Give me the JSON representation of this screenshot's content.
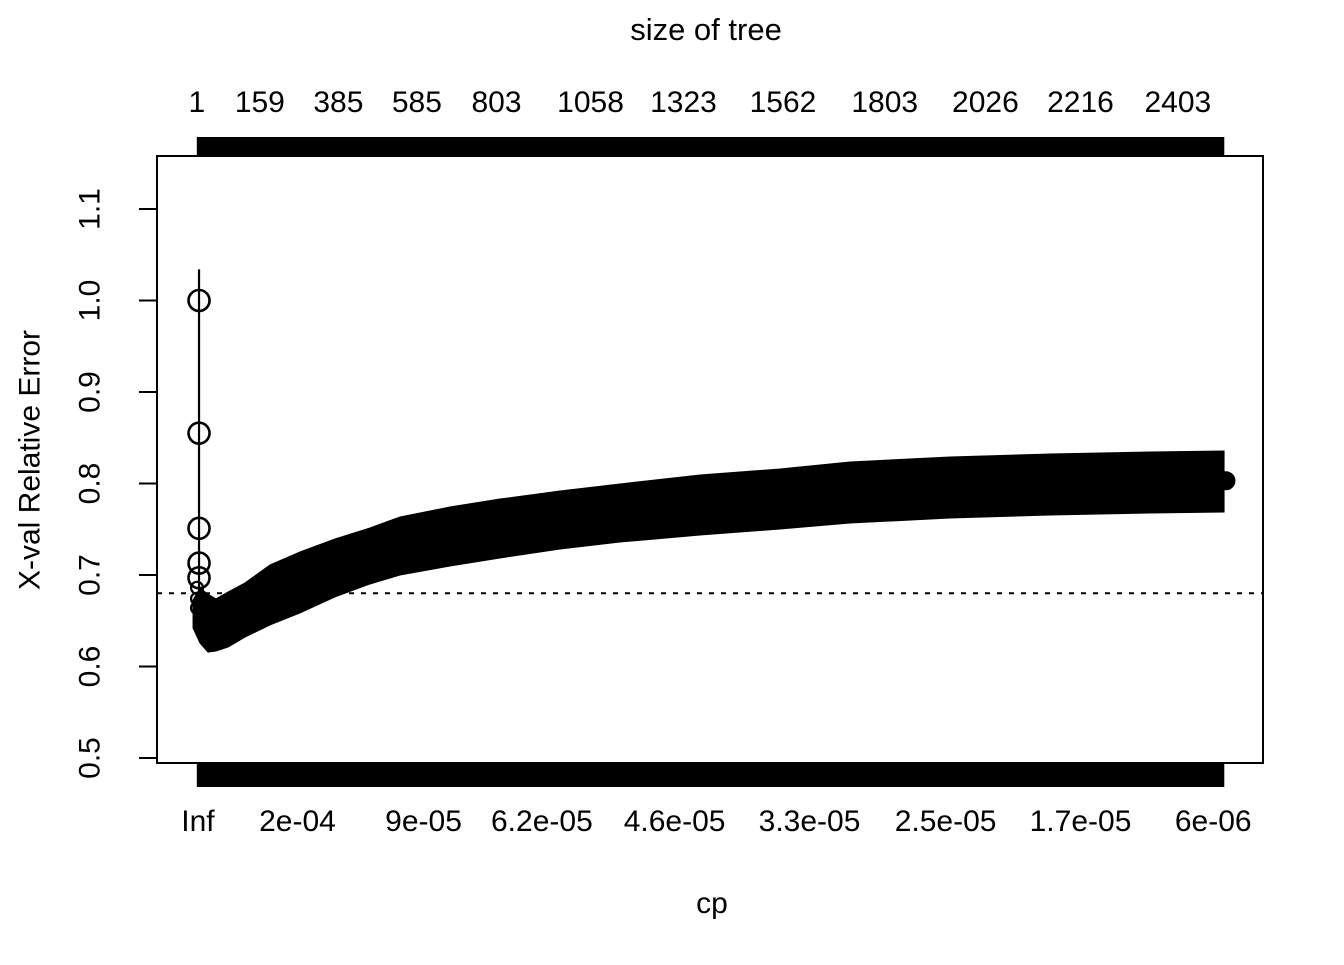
{
  "chart_data": {
    "type": "line",
    "title": "size of tree",
    "xlabel": "cp",
    "ylabel": "X-val Relative Error",
    "colors": {
      "foreground": "#000000",
      "background": "#ffffff"
    },
    "y_axis": {
      "tick_labels": [
        "1.1",
        "1.0",
        "0.9",
        "0.8",
        "0.7",
        "0.6",
        "0.5"
      ],
      "tick_values": [
        1.1,
        1.0,
        0.9,
        0.8,
        0.7,
        0.6,
        0.5
      ]
    },
    "top_axis": {
      "labels": [
        "1",
        "159",
        "385",
        "585",
        "803",
        "1058",
        "1323",
        "1562",
        "1803",
        "2026",
        "2216",
        "2403"
      ],
      "positions": [
        0.036,
        0.093,
        0.164,
        0.235,
        0.307,
        0.392,
        0.476,
        0.566,
        0.658,
        0.749,
        0.835,
        0.923
      ]
    },
    "bottom_axis": {
      "labels": [
        "Inf",
        "2e-04",
        "9e-05",
        "6.2e-05",
        "4.6e-05",
        "3.3e-05",
        "2.5e-05",
        "1.7e-05",
        "6e-06"
      ],
      "positions": [
        0.037,
        0.127,
        0.241,
        0.348,
        0.468,
        0.59,
        0.713,
        0.835,
        0.955
      ]
    },
    "tick_bar_range": [
      0.036,
      0.965
    ],
    "guide_line": {
      "value": 0.68,
      "style": "dotted"
    },
    "left_points": {
      "x": 0.038,
      "values": [
        1.0,
        0.855,
        0.751,
        0.713,
        0.697
      ],
      "small_values": [
        0.686,
        0.674,
        0.664
      ],
      "errorbar_top": 1.034,
      "errorbar_bottom": 0.63
    },
    "last_point": {
      "x": 0.9665,
      "value": 0.803
    },
    "band": {
      "x": [
        0.0326,
        0.0389,
        0.0461,
        0.0533,
        0.0642,
        0.0796,
        0.1022,
        0.1293,
        0.1609,
        0.1926,
        0.2197,
        0.2649,
        0.3101,
        0.3644,
        0.4186,
        0.491,
        0.5633,
        0.6266,
        0.717,
        0.8075,
        0.8979,
        0.9648
      ],
      "top": [
        0.6727,
        0.6858,
        0.679,
        0.6738,
        0.6814,
        0.6913,
        0.711,
        0.7252,
        0.7394,
        0.7514,
        0.7634,
        0.7743,
        0.783,
        0.7918,
        0.7995,
        0.8093,
        0.8158,
        0.8235,
        0.829,
        0.8322,
        0.8344,
        0.8355
      ],
      "bottom": [
        0.642,
        0.6256,
        0.6158,
        0.6169,
        0.6213,
        0.6322,
        0.6454,
        0.6585,
        0.676,
        0.6902,
        0.7,
        0.7098,
        0.7186,
        0.7284,
        0.736,
        0.7437,
        0.7503,
        0.7568,
        0.7623,
        0.7656,
        0.7678,
        0.7689
      ]
    }
  }
}
